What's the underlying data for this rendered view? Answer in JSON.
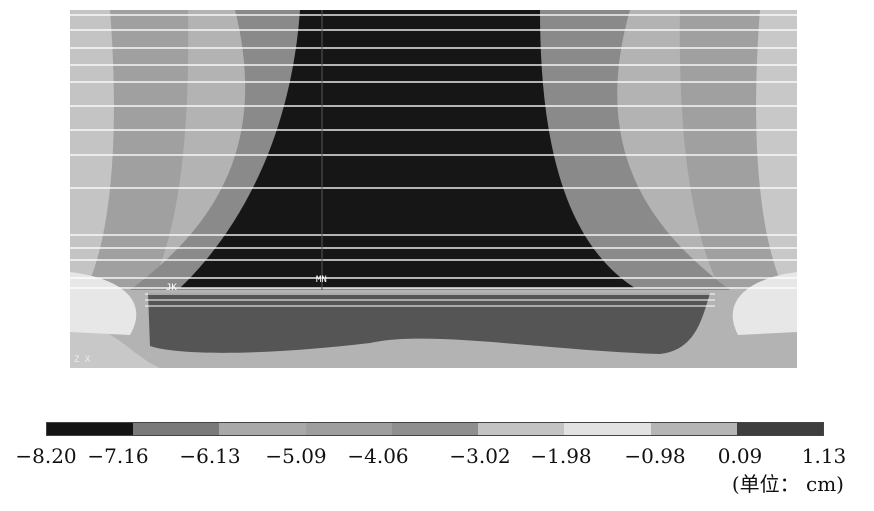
{
  "figure": {
    "markers": {
      "left_label": "JK",
      "center_label": "MN",
      "axis_marks": "Z X"
    },
    "contour_colors": [
      "#1b1b1b",
      "#8c8c8c",
      "#a6a6a6",
      "#bcbcbc",
      "#d2d2d2",
      "#e6e6e6",
      "#4f4f4f"
    ]
  },
  "legend": {
    "levels": [
      "−8.20",
      "−7.16",
      "−6.13",
      "−5.09",
      "−4.06",
      "−3.02",
      "−1.98",
      "−0.98",
      "0.09",
      "1.13"
    ],
    "bands": [
      {
        "from": "−8.20",
        "to": "−7.16",
        "color": "#141414"
      },
      {
        "from": "−7.16",
        "to": "−6.13",
        "color": "#7a7a7a"
      },
      {
        "from": "−6.13",
        "to": "−5.09",
        "color": "#a9a9a9"
      },
      {
        "from": "−5.09",
        "to": "−4.06",
        "color": "#9e9e9e"
      },
      {
        "from": "−4.06",
        "to": "−3.02",
        "color": "#8f8f8f"
      },
      {
        "from": "−3.02",
        "to": "−1.98",
        "color": "#c3c3c3"
      },
      {
        "from": "−1.98",
        "to": "−0.98",
        "color": "#e2e2e2"
      },
      {
        "from": "−0.98",
        "to": "0.09",
        "color": "#b5b5b5"
      },
      {
        "from": "0.09",
        "to": "1.13",
        "color": "#3e3e3e"
      }
    ],
    "unit": "(单位： cm)"
  }
}
